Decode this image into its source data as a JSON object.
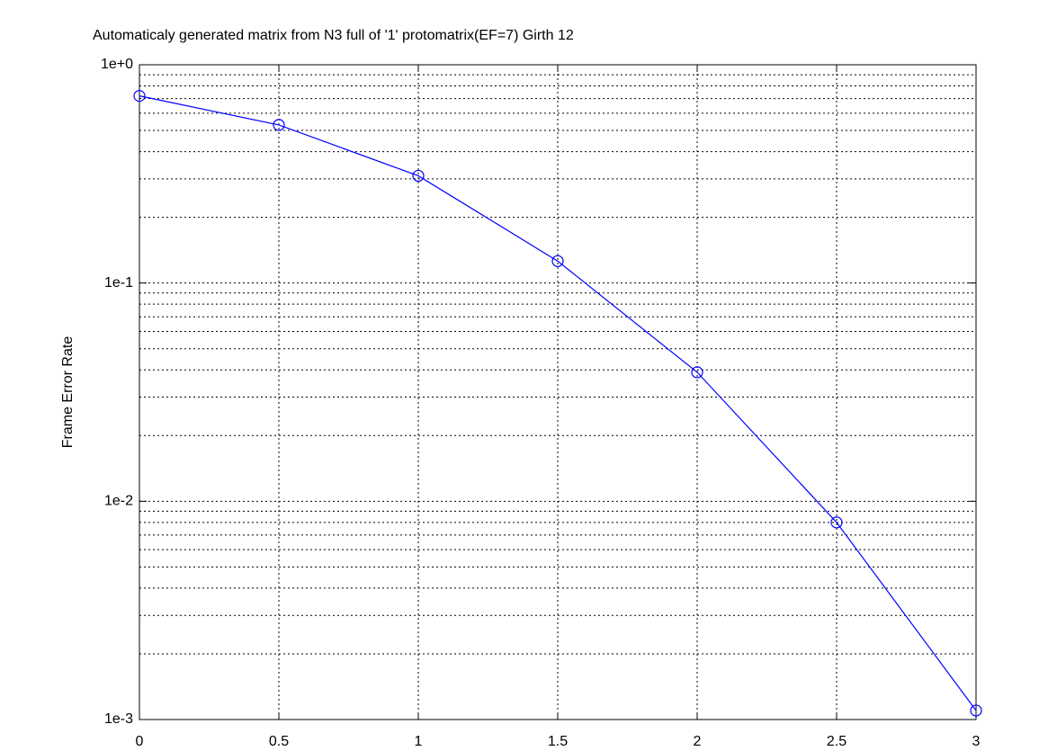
{
  "chart_data": {
    "type": "line",
    "title": "Automaticaly generated matrix from N3 full of '1' protomatrix(EF=7) Girth 12",
    "y_label": "Frame Error Rate",
    "x": [
      0,
      0.5,
      1,
      1.5,
      2,
      2.5,
      3
    ],
    "series": [
      {
        "color": "#0000ff",
        "marker": "circle",
        "values": [
          0.72,
          0.53,
          0.31,
          0.126,
          0.039,
          0.008,
          0.0011
        ]
      }
    ],
    "xlim": [
      0,
      3
    ],
    "xticks": [
      0,
      0.5,
      1,
      1.5,
      2,
      2.5,
      3
    ],
    "ylim": [
      0.001,
      1
    ],
    "y_scale": "log",
    "yticks": [
      {
        "value": 1,
        "label": "1e+0"
      },
      {
        "value": 0.1,
        "label": "1e-1"
      },
      {
        "value": 0.01,
        "label": "1e-2"
      },
      {
        "value": 0.001,
        "label": "1e-3"
      }
    ],
    "grid": true,
    "minor_grid": true
  }
}
